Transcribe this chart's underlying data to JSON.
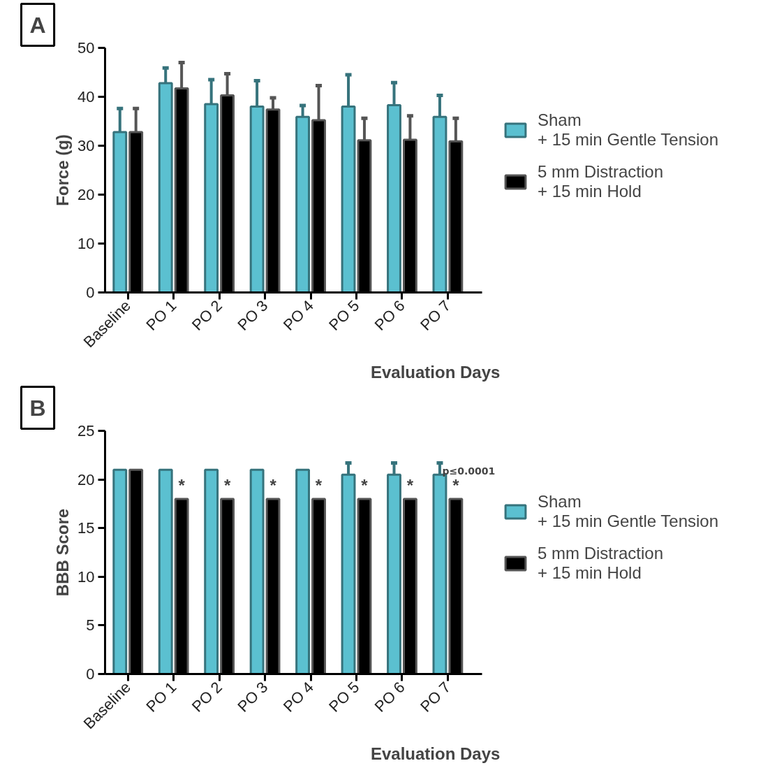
{
  "chart_data": [
    {
      "type": "bar",
      "xlabel": "Evaluation  Days",
      "ylabel": "Force (g)",
      "annotations": [
        "A"
      ],
      "categories": [
        "Baseline",
        "PO 1",
        "PO 2",
        "PO 3",
        "PO 4",
        "PO 5",
        "PO 6",
        "PO 7"
      ],
      "ylim": [
        0,
        50
      ],
      "yticks": [
        0,
        10,
        20,
        30,
        40,
        50
      ],
      "grid": false,
      "legend": "right",
      "series": [
        {
          "name": "Sham\n+ 15 min Gentle Tension",
          "color": "#5bc0d0",
          "values": [
            32.8,
            42.8,
            38.5,
            38.0,
            35.9,
            38.0,
            38.3,
            35.9
          ],
          "errors": [
            [
              32.8,
              37.6
            ],
            [
              42.8,
              45.9
            ],
            [
              38.5,
              43.5
            ],
            [
              38.0,
              43.3
            ],
            [
              35.9,
              38.2
            ],
            [
              38.0,
              44.5
            ],
            [
              38.3,
              42.9
            ],
            [
              35.9,
              40.3
            ]
          ]
        },
        {
          "name": "5 mm Distraction\n+ 15 min Hold",
          "color": "#000000",
          "values": [
            32.8,
            41.7,
            40.3,
            37.4,
            35.2,
            31.1,
            31.2,
            30.9
          ],
          "errors": [
            [
              32.8,
              37.6
            ],
            [
              41.7,
              47.0
            ],
            [
              40.3,
              44.7
            ],
            [
              37.4,
              39.8
            ],
            [
              35.2,
              42.3
            ],
            [
              31.1,
              35.6
            ],
            [
              31.2,
              36.1
            ],
            [
              30.9,
              35.6
            ]
          ]
        }
      ]
    },
    {
      "type": "bar",
      "xlabel": "Evaluation  Days",
      "ylabel": "BBB Score",
      "annotations": [
        "B",
        {
          "text": "*",
          "x": "PO 1",
          "y": 18
        },
        {
          "text": "*",
          "x": "PO 2",
          "y": 18
        },
        {
          "text": "*",
          "x": "PO 3",
          "y": 18
        },
        {
          "text": "*",
          "x": "PO 4",
          "y": 18
        },
        {
          "text": "*",
          "x": "PO 5",
          "y": 18
        },
        {
          "text": "*",
          "x": "PO 6",
          "y": 18
        },
        {
          "text": "*",
          "x": "PO 7",
          "y": 18
        },
        "p≤0.0001"
      ],
      "categories": [
        "Baseline",
        "PO 1",
        "PO 2",
        "PO 3",
        "PO 4",
        "PO 5",
        "PO 6",
        "PO 7"
      ],
      "ylim": [
        0,
        25
      ],
      "yticks": [
        0,
        5,
        10,
        15,
        20,
        25
      ],
      "grid": false,
      "legend": "right",
      "series": [
        {
          "name": "Sham\n+ 15 min Gentle Tension",
          "color": "#5bc0d0",
          "values": [
            21,
            21,
            21,
            21,
            21,
            20.5,
            20.5,
            20.5
          ],
          "errors": [
            null,
            null,
            null,
            null,
            null,
            [
              20.5,
              21.7
            ],
            [
              20.5,
              21.7
            ],
            [
              20.5,
              21.7
            ]
          ]
        },
        {
          "name": "5 mm Distraction\n+ 15 min Hold",
          "color": "#000000",
          "values": [
            21,
            18,
            18,
            18,
            18,
            18,
            18,
            18
          ]
        }
      ]
    }
  ]
}
